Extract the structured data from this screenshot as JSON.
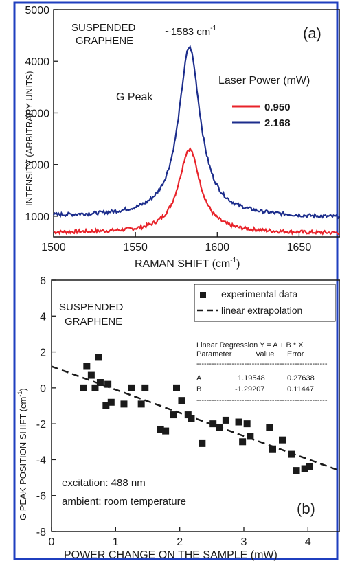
{
  "colors": {
    "frame": "#1f3fbf",
    "red_series": "#e8232a",
    "blue_series": "#1c2d8c",
    "ink": "#1a1a1a"
  },
  "chart_data": [
    {
      "type": "line",
      "panel": "(a)",
      "annotation_top_left": [
        "SUSPENDED",
        "GRAPHENE"
      ],
      "peak_label": "~1583 cm",
      "peak_label_sup": "-1",
      "g_peak_label": "G Peak",
      "xlabel": "RAMAN SHIFT (cm",
      "xlabel_sup": "-1",
      "xlabel_end": ")",
      "ylabel": "INTENSITY (ARBITRARY UNITS)",
      "xlim": [
        1500,
        1675
      ],
      "ylim": [
        600,
        5000
      ],
      "xticks": [
        "1500",
        "1550",
        "1600",
        "1650"
      ],
      "yticks": [
        "1000",
        "2000",
        "3000",
        "4000",
        "5000"
      ],
      "legend_title": "Laser Power (mW)",
      "legend_placement": "right",
      "series": [
        {
          "name": "0.950",
          "color": "#e8232a",
          "baseline": 680,
          "peak_x": 1583,
          "peak_y": 2300,
          "hwhm": 8
        },
        {
          "name": "2.168",
          "color": "#1c2d8c",
          "baseline": 1000,
          "peak_x": 1583,
          "peak_y": 4270,
          "hwhm": 8
        }
      ]
    },
    {
      "type": "scatter",
      "panel": "(b)",
      "annotation_top_left": [
        "SUSPENDED",
        "GRAPHENE"
      ],
      "xlabel": "POWER CHANGE ON THE SAMPLE  (mW)",
      "ylabel": "G PEAK POSITION SHIFT (cm",
      "ylabel_sup": "-1",
      "ylabel_end": ")",
      "xlim": [
        0,
        4.5
      ],
      "ylim": [
        -8,
        6
      ],
      "xticks": [
        "0",
        "1",
        "2",
        "3",
        "4"
      ],
      "yticks": [
        "-8",
        "-6",
        "-4",
        "-2",
        "0",
        "2",
        "4",
        "6"
      ],
      "legend": [
        "experimental data",
        "linear extrapolation"
      ],
      "legend_placement": "top-right",
      "regression_table": {
        "title": "Linear Regression Y = A + B * X",
        "header": [
          "Parameter",
          "Value",
          "Error"
        ],
        "rows": [
          [
            "A",
            "1.19548",
            "0.27638"
          ],
          [
            "B",
            "-1.29207",
            "0.11447"
          ]
        ],
        "divider": "----------------------------------------------------"
      },
      "fit": {
        "intercept": 1.19548,
        "slope": -1.29207
      },
      "points": [
        [
          0.5,
          0.0
        ],
        [
          0.55,
          1.2
        ],
        [
          0.62,
          0.7
        ],
        [
          0.68,
          0.0
        ],
        [
          0.73,
          1.7
        ],
        [
          0.76,
          0.3
        ],
        [
          0.85,
          -1.0
        ],
        [
          0.88,
          0.2
        ],
        [
          0.93,
          -0.8
        ],
        [
          1.13,
          -0.9
        ],
        [
          1.25,
          0.0
        ],
        [
          1.4,
          -0.9
        ],
        [
          1.46,
          0.0
        ],
        [
          1.7,
          -2.3
        ],
        [
          1.78,
          -2.4
        ],
        [
          1.9,
          -1.5
        ],
        [
          1.95,
          0.0
        ],
        [
          2.03,
          -0.7
        ],
        [
          2.13,
          -1.5
        ],
        [
          2.18,
          -1.7
        ],
        [
          2.35,
          -3.1
        ],
        [
          2.52,
          -2.0
        ],
        [
          2.62,
          -2.2
        ],
        [
          2.72,
          -1.8
        ],
        [
          2.92,
          -1.9
        ],
        [
          2.98,
          -3.0
        ],
        [
          3.05,
          -2.0
        ],
        [
          3.1,
          -2.7
        ],
        [
          3.4,
          -2.2
        ],
        [
          3.45,
          -3.4
        ],
        [
          3.6,
          -2.9
        ],
        [
          3.75,
          -3.7
        ],
        [
          3.82,
          -4.6
        ],
        [
          3.95,
          -4.5
        ],
        [
          4.02,
          -4.4
        ]
      ],
      "annotation_bottom": [
        "excitation: 488 nm",
        "ambient: room temperature"
      ]
    }
  ]
}
